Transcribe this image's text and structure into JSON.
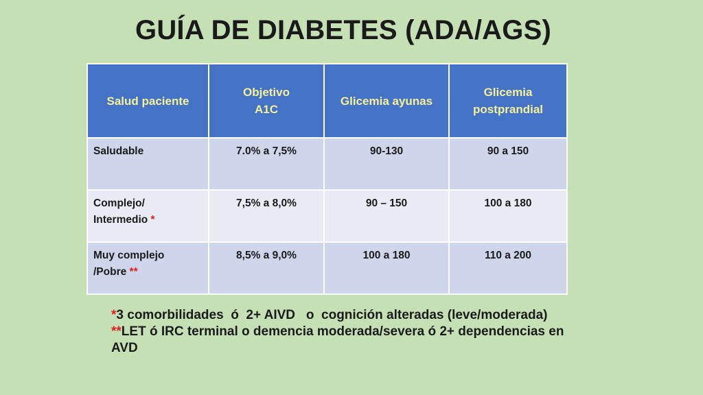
{
  "title": "GUÍA DE DIABETES (ADA/AGS)",
  "table": {
    "headers": [
      {
        "line1": "Salud paciente",
        "line2": ""
      },
      {
        "line1": "Objetivo",
        "line2": "A1C"
      },
      {
        "line1": "Glicemia ayunas",
        "line2": ""
      },
      {
        "line1": "Glicemia",
        "line2": "postprandial"
      }
    ],
    "rows": [
      {
        "health_line1": "Saludable",
        "health_line2": "",
        "marker": "",
        "a1c": "7.0%  a 7,5%",
        "fasting": "90-130",
        "postprandial": "90 a 150"
      },
      {
        "health_line1": "Complejo/",
        "health_line2": "Intermedio",
        "marker": "*",
        "a1c": "7,5%  a  8,0%",
        "fasting": "90 – 150",
        "postprandial": "100 a 180"
      },
      {
        "health_line1": "Muy complejo",
        "health_line2": "/Pobre",
        "marker": "**",
        "a1c": "8,5%  a  9,0%",
        "fasting": "100 a 180",
        "postprandial": "110 a 200"
      }
    ]
  },
  "notes": [
    {
      "marker": "*",
      "text": "3 comorbilidades  ó  2+ AIVD   o  cognición alteradas (leve/moderada)"
    },
    {
      "marker": "**",
      "text": "LET ó IRC terminal o demencia moderada/severa ó 2+ dependencias en AVD"
    }
  ],
  "colors": {
    "background": "#c5e0b4",
    "header_fill": "#4472c4",
    "header_text": "#f5f09a",
    "row_alt_1": "#cfd5ea",
    "row_alt_2": "#e9ebf5",
    "marker": "#e02020"
  }
}
